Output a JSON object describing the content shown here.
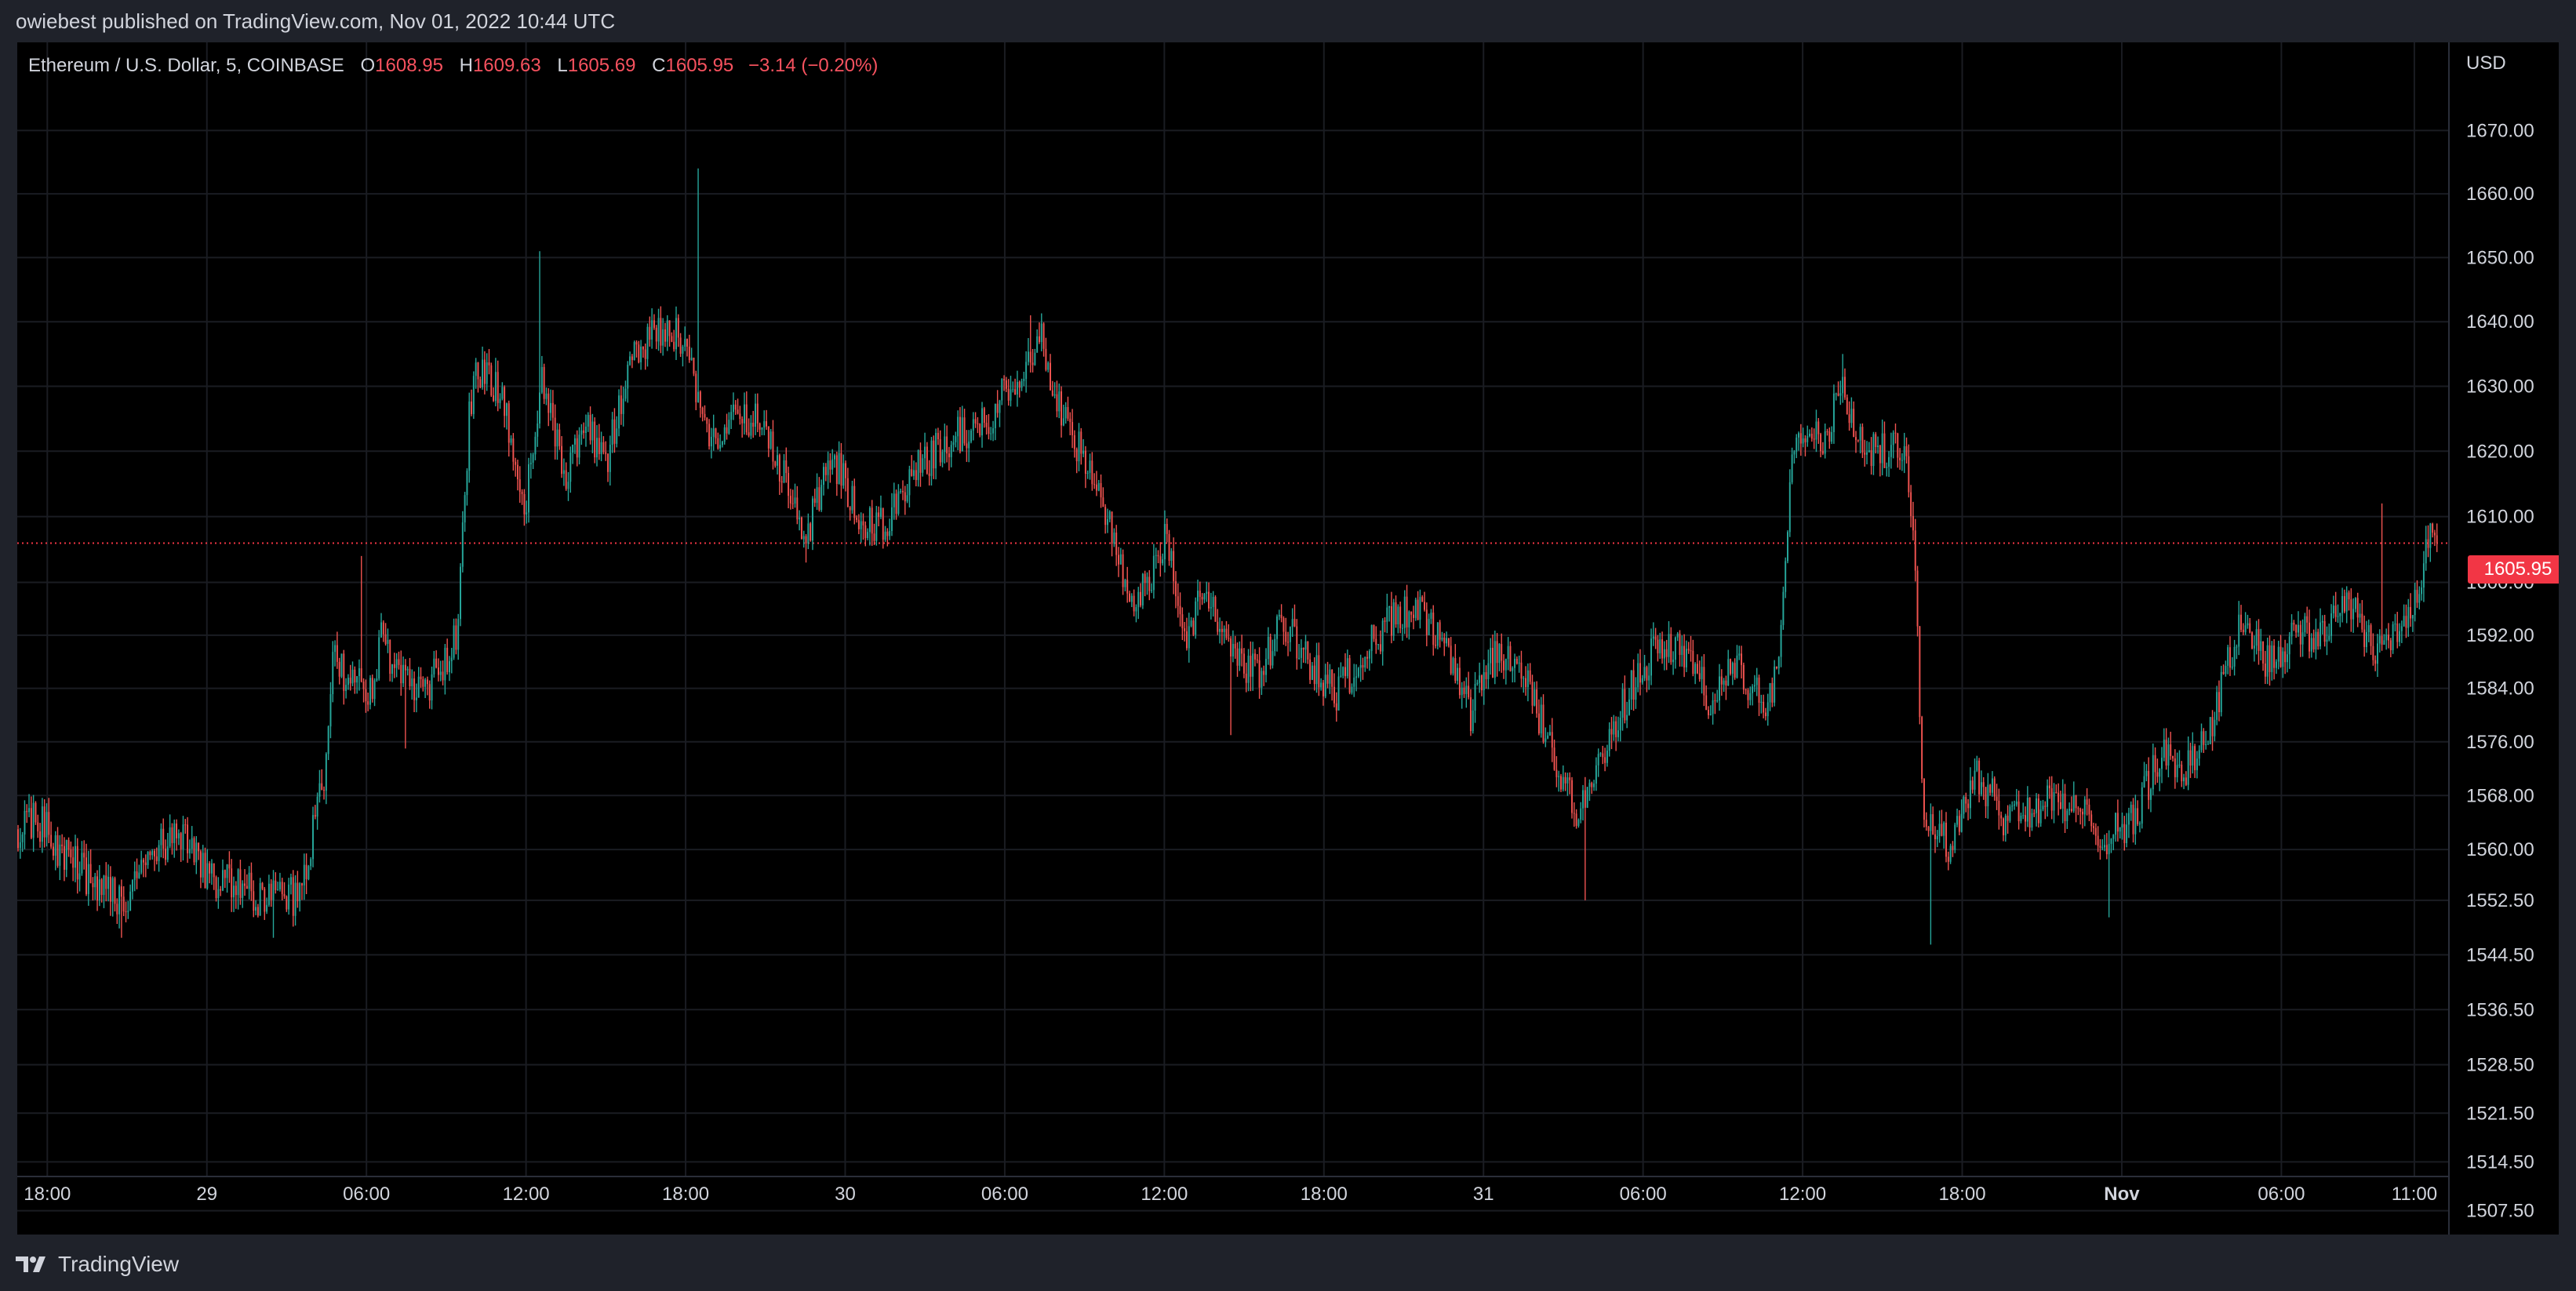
{
  "header": {
    "published_text": "owiebest published on TradingView.com, Nov 01, 2022 10:44 UTC"
  },
  "legend": {
    "symbol": "Ethereum / U.S. Dollar, 5, COINBASE",
    "open_label": "O",
    "open": "1608.95",
    "high_label": "H",
    "high": "1609.63",
    "low_label": "L",
    "low": "1605.69",
    "close_label": "C",
    "close": "1605.95",
    "change": "−3.14 (−0.20%)"
  },
  "footer": {
    "brand": "TradingView"
  },
  "colors": {
    "up": "#26a69a",
    "down": "#ef5350",
    "background": "#000000",
    "last_price": "#f23645"
  },
  "chart_data": {
    "type": "candlestick",
    "symbol": "Ethereum / U.S. Dollar",
    "interval": "5",
    "exchange": "COINBASE",
    "currency": "USD",
    "scale": "log",
    "grid": true,
    "last_price": "1605.95",
    "ylim": [
      1505,
      1683
    ],
    "y_ticks": [
      "1670.00",
      "1660.00",
      "1650.00",
      "1640.00",
      "1630.00",
      "1620.00",
      "1610.00",
      "1600.00",
      "1592.00",
      "1584.00",
      "1576.00",
      "1568.00",
      "1560.00",
      "1552.50",
      "1544.50",
      "1536.50",
      "1528.50",
      "1521.50",
      "1514.50",
      "1507.50"
    ],
    "x_ticks": [
      {
        "label": "18:00",
        "t": 0
      },
      {
        "label": "29",
        "t": 6
      },
      {
        "label": "06:00",
        "t": 12
      },
      {
        "label": "12:00",
        "t": 18
      },
      {
        "label": "18:00",
        "t": 24
      },
      {
        "label": "30",
        "t": 30
      },
      {
        "label": "06:00",
        "t": 36
      },
      {
        "label": "12:00",
        "t": 42
      },
      {
        "label": "18:00",
        "t": 48
      },
      {
        "label": "31",
        "t": 54
      },
      {
        "label": "06:00",
        "t": 60
      },
      {
        "label": "12:00",
        "t": 66
      },
      {
        "label": "18:00",
        "t": 72
      },
      {
        "label": "Nov",
        "t": 78
      },
      {
        "label": "06:00",
        "t": 84
      },
      {
        "label": "11:00",
        "t": 89
      }
    ],
    "trend": [
      [
        -1.1,
        1563
      ],
      [
        -0.5,
        1565
      ],
      [
        0.5,
        1560
      ],
      [
        1.5,
        1556
      ],
      [
        3,
        1552
      ],
      [
        4,
        1560
      ],
      [
        5,
        1562
      ],
      [
        6,
        1556
      ],
      [
        8,
        1553
      ],
      [
        9.5,
        1553
      ],
      [
        10.5,
        1572
      ],
      [
        10.7,
        1588
      ],
      [
        11.5,
        1585
      ],
      [
        12.3,
        1582
      ],
      [
        12.6,
        1595
      ],
      [
        13,
        1586
      ],
      [
        14,
        1583
      ],
      [
        15,
        1588
      ],
      [
        15.4,
        1592
      ],
      [
        15.9,
        1628
      ],
      [
        16.2,
        1632
      ],
      [
        17,
        1630
      ],
      [
        18,
        1612
      ],
      [
        18.6,
        1632
      ],
      [
        19.5,
        1615
      ],
      [
        20.2,
        1625
      ],
      [
        21,
        1618
      ],
      [
        22,
        1636
      ],
      [
        23,
        1638
      ],
      [
        24,
        1638
      ],
      [
        24.5,
        1628
      ],
      [
        25,
        1622
      ],
      [
        26,
        1625
      ],
      [
        27,
        1624
      ],
      [
        28,
        1612
      ],
      [
        28.5,
        1607
      ],
      [
        29.5,
        1619
      ],
      [
        30.5,
        1611
      ],
      [
        31,
        1608
      ],
      [
        32,
        1611
      ],
      [
        32.8,
        1618
      ],
      [
        34,
        1622
      ],
      [
        35.2,
        1624
      ],
      [
        36.5,
        1632
      ],
      [
        37.3,
        1638
      ],
      [
        38,
        1628
      ],
      [
        39,
        1618
      ],
      [
        39.8,
        1610
      ],
      [
        40.6,
        1598
      ],
      [
        41.5,
        1600
      ],
      [
        42,
        1607
      ],
      [
        42.8,
        1592
      ],
      [
        43.5,
        1598
      ],
      [
        44.5,
        1590
      ],
      [
        45.5,
        1586
      ],
      [
        46.5,
        1594
      ],
      [
        47.5,
        1588
      ],
      [
        48.5,
        1583
      ],
      [
        49.5,
        1590
      ],
      [
        50.5,
        1594
      ],
      [
        51.5,
        1596
      ],
      [
        52.5,
        1590
      ],
      [
        53.5,
        1580
      ],
      [
        54.5,
        1590
      ],
      [
        55.5,
        1586
      ],
      [
        56.5,
        1575
      ],
      [
        57.5,
        1566
      ],
      [
        58.5,
        1573
      ],
      [
        59.5,
        1584
      ],
      [
        60.5,
        1590
      ],
      [
        61.5,
        1590
      ],
      [
        62.5,
        1582
      ],
      [
        63.5,
        1587
      ],
      [
        64.5,
        1582
      ],
      [
        65,
        1585
      ],
      [
        65.6,
        1620
      ],
      [
        66.2,
        1625
      ],
      [
        66.7,
        1620
      ],
      [
        67.4,
        1630
      ],
      [
        68.3,
        1620
      ],
      [
        69.3,
        1620
      ],
      [
        69.9,
        1622
      ],
      [
        70.3,
        1598
      ],
      [
        70.5,
        1566
      ],
      [
        71.5,
        1560
      ],
      [
        72.5,
        1572
      ],
      [
        73.5,
        1565
      ],
      [
        74.5,
        1566
      ],
      [
        75.5,
        1567
      ],
      [
        76.5,
        1565
      ],
      [
        77.5,
        1562
      ],
      [
        78.5,
        1565
      ],
      [
        79.5,
        1574
      ],
      [
        80.5,
        1572
      ],
      [
        81.5,
        1580
      ],
      [
        82.5,
        1595
      ],
      [
        83.5,
        1588
      ],
      [
        84.5,
        1592
      ],
      [
        85.5,
        1592
      ],
      [
        86.5,
        1598
      ],
      [
        87.5,
        1590
      ],
      [
        88.5,
        1593
      ],
      [
        89.3,
        1600
      ],
      [
        89.6,
        1608
      ],
      [
        89.85,
        1605.95
      ]
    ],
    "spikes": [
      {
        "t": 11.8,
        "high": 1604
      },
      {
        "t": 18.5,
        "high": 1651
      },
      {
        "t": 24.5,
        "high": 1664
      },
      {
        "t": 37,
        "high": 1641
      },
      {
        "t": 67.5,
        "high": 1635
      },
      {
        "t": 87.8,
        "high": 1612
      },
      {
        "t": 2.8,
        "low": 1547
      },
      {
        "t": 8.5,
        "low": 1547
      },
      {
        "t": 13.5,
        "low": 1575
      },
      {
        "t": 28.5,
        "low": 1603
      },
      {
        "t": 44.5,
        "low": 1577
      },
      {
        "t": 57.8,
        "low": 1552.5
      },
      {
        "t": 70.8,
        "low": 1546
      },
      {
        "t": 77.5,
        "low": 1550
      }
    ]
  }
}
